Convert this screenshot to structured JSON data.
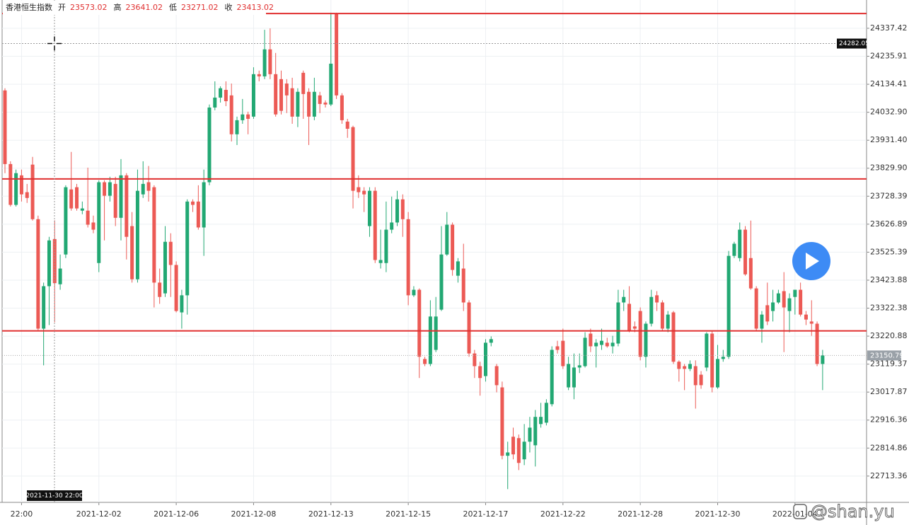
{
  "chart_data": {
    "type": "candlestick",
    "header": {
      "name": "香港恒生指数",
      "fields": [
        {
          "label": "开",
          "value": 23573.02
        },
        {
          "label": "高",
          "value": 23641.02
        },
        {
          "label": "低",
          "value": 23271.02
        },
        {
          "label": "收",
          "value": 23413.02
        }
      ]
    },
    "categories": [
      null,
      null,
      null,
      "22:00",
      null,
      null,
      null,
      null,
      null,
      null,
      null,
      null,
      null,
      null,
      null,
      null,
      null,
      "2021-12-02",
      null,
      null,
      null,
      null,
      null,
      null,
      null,
      null,
      null,
      null,
      null,
      null,
      null,
      "2021-12-06",
      null,
      null,
      null,
      null,
      null,
      null,
      null,
      null,
      null,
      null,
      null,
      null,
      null,
      "2021-12-08",
      null,
      null,
      null,
      null,
      null,
      null,
      null,
      null,
      null,
      null,
      null,
      null,
      null,
      "2021-12-13",
      null,
      null,
      null,
      null,
      null,
      null,
      null,
      null,
      null,
      null,
      null,
      null,
      null,
      "2021-12-15",
      null,
      null,
      null,
      null,
      null,
      null,
      null,
      null,
      null,
      null,
      null,
      null,
      null,
      "2021-12-17",
      null,
      null,
      null,
      null,
      null,
      null,
      null,
      null,
      null,
      null,
      null,
      null,
      null,
      "2021-12-22",
      null,
      null,
      null,
      null,
      null,
      null,
      null,
      null,
      null,
      null,
      null,
      null,
      null,
      "2021-12-28",
      null,
      null,
      null,
      null,
      null,
      null,
      null,
      null,
      null,
      null,
      null,
      null,
      null,
      "2021-12-30",
      null,
      null,
      null,
      null,
      null,
      null,
      null,
      null,
      null,
      null,
      null,
      null,
      null,
      "2022-01-04",
      null,
      null,
      null,
      null,
      null
    ],
    "open": [
      24112,
      23845,
      23697,
      23804,
      23743,
      23843,
      23645,
      23248,
      23402,
      23573.02,
      23409,
      23517,
      23753,
      23761,
      23676,
      23676,
      23633,
      23486,
      23779,
      23730,
      23773,
      23650,
      23804,
      23620,
      23427,
      23735,
      23779,
      23761,
      23415,
      23376,
      23563,
      23479,
      23307,
      23369,
      23709,
      23709,
      23615,
      23779,
      24050,
      24086,
      24114,
      24094,
      23953,
      24004,
      24025,
      24017,
      24171,
      24163,
      24261,
      24171,
      24153,
      24137,
      24120,
      24017,
      24176,
      24107,
      24017,
      24094,
      24068,
      24061,
      24389,
      24094,
      23999,
      23979,
      23761,
      23748,
      23620,
      23748,
      23486,
      23486,
      23607,
      23633,
      23717,
      23645,
      23369,
      23389,
      23138,
      23120,
      23171,
      23317,
      23517,
      23625,
      23440,
      23466,
      23343,
      23158,
      23112,
      23076,
      23197,
      23112,
      23035,
      22787,
      22856,
      22851,
      22774,
      22838,
      22825,
      22902,
      22907,
      22974,
      23184,
      23204,
      23035,
      23035,
      23107,
      23112,
      23230,
      23184,
      23189,
      23197,
      23184,
      23194,
      23343,
      23338,
      23256,
      23312,
      23146,
      23266,
      23369,
      23343,
      23248,
      23307,
      23128,
      23112,
      23102,
      23112,
      23081,
      23107,
      23230,
      23035,
      23138,
      23146,
      23512,
      23504,
      23607,
      23504,
      23394,
      23248,
      23333,
      23312,
      23343,
      23384,
      23312,
      23363,
      23389,
      23299,
      23274,
      23266,
      23120
    ],
    "high": [
      24120,
      23855,
      23825,
      23825,
      23773,
      23871,
      23658,
      23415,
      23581,
      23641.02,
      23517,
      23768,
      23889,
      23773,
      23709,
      23832,
      23658,
      23786,
      23786,
      23799,
      23799,
      23863,
      23812,
      23671,
      23825,
      23855,
      23838,
      23768,
      23466,
      23620,
      23594,
      23492,
      23389,
      23717,
      23717,
      23768,
      23825,
      24061,
      24145,
      24127,
      24145,
      24137,
      24017,
      24081,
      24035,
      24196,
      24184,
      24332,
      24337,
      24248,
      24184,
      24153,
      24158,
      24120,
      24184,
      24120,
      24158,
      24107,
      24076,
      24394,
      24394,
      24102,
      24009,
      23984,
      23804,
      23761,
      23761,
      23761,
      23607,
      23709,
      23727,
      23748,
      23735,
      23671,
      23402,
      23394,
      23146,
      23351,
      23363,
      23620,
      23671,
      23633,
      23504,
      23556,
      23351,
      23171,
      23128,
      23210,
      23220,
      23120,
      23056,
      22838,
      22889,
      22864,
      22902,
      22928,
      22953,
      22979,
      22992,
      23184,
      23204,
      23248,
      23146,
      23158,
      23158,
      23235,
      23248,
      23210,
      23248,
      23215,
      23222,
      23389,
      23389,
      23402,
      23274,
      23325,
      23274,
      23389,
      23384,
      23351,
      23312,
      23312,
      23133,
      23120,
      23133,
      23133,
      23094,
      23235,
      23240,
      23189,
      23171,
      23530,
      23563,
      23633,
      23620,
      23640,
      23402,
      23312,
      23415,
      23389,
      23389,
      23453,
      23376,
      23389,
      23415,
      23312,
      23351,
      23274,
      23171
    ],
    "low": [
      23812,
      23691,
      23691,
      23709,
      23704,
      23640,
      23243,
      23115,
      23261,
      23271.02,
      23389,
      23504,
      23676,
      23676,
      23663,
      23615,
      23594,
      23453,
      23568,
      23709,
      23620,
      23568,
      23499,
      23415,
      23415,
      23722,
      23709,
      23325,
      23338,
      23363,
      23363,
      23307,
      23248,
      23299,
      23671,
      23607,
      23512,
      23768,
      24040,
      24068,
      24055,
      23927,
      23914,
      23991,
      23953,
      24009,
      24145,
      24153,
      24153,
      24017,
      24025,
      24030,
      23991,
      23979,
      24009,
      23914,
      24004,
      24030,
      24050,
      24055,
      24081,
      23991,
      23940,
      23684,
      23722,
      23671,
      23581,
      23486,
      23466,
      23453,
      23594,
      23620,
      23581,
      23333,
      23363,
      23069,
      23112,
      23112,
      23163,
      23312,
      23512,
      23440,
      23415,
      23312,
      23146,
      23069,
      23005,
      23056,
      23184,
      23017,
      22774,
      22666,
      22774,
      22735,
      22753,
      22799,
      22748,
      22889,
      22897,
      22966,
      23158,
      23102,
      23025,
      22992,
      23087,
      23107,
      23163,
      23107,
      23171,
      23179,
      23158,
      23184,
      23312,
      23235,
      23235,
      23133,
      23107,
      23256,
      23312,
      23240,
      23235,
      23120,
      23056,
      23025,
      23094,
      22958,
      23030,
      23094,
      23017,
      23030,
      23128,
      23138,
      23504,
      23492,
      23440,
      23389,
      23240,
      23197,
      23261,
      23274,
      23338,
      23163,
      23235,
      23299,
      23292,
      23261,
      23222,
      23112,
      23025
    ],
    "close": [
      23845,
      23697,
      23812,
      23735,
      23722,
      23645,
      23248,
      23402,
      23568,
      23413.02,
      23466,
      23761,
      23684,
      23684,
      23684,
      23625,
      23607,
      23779,
      23730,
      23779,
      23650,
      23804,
      23581,
      23427,
      23748,
      23773,
      23748,
      23415,
      23363,
      23563,
      23479,
      23312,
      23369,
      23709,
      23697,
      23615,
      23779,
      24050,
      24086,
      24120,
      24073,
      23953,
      24004,
      24025,
      24009,
      24171,
      24163,
      24261,
      24171,
      24025,
      24038,
      24094,
      24017,
      24107,
      24099,
      24017,
      24107,
      24063,
      24061,
      24209,
      24094,
      24004,
      23973,
      23748,
      23743,
      23735,
      23748,
      23497,
      23497,
      23607,
      23633,
      23717,
      23645,
      23369,
      23389,
      23146,
      23120,
      23292,
      23292,
      23517,
      23625,
      23461,
      23492,
      23343,
      23158,
      23112,
      23069,
      23197,
      23210,
      23043,
      22787,
      22799,
      22792,
      22761,
      22838,
      22889,
      22928,
      22928,
      22979,
      23171,
      23171,
      23112,
      23120,
      23107,
      23115,
      23215,
      23184,
      23197,
      23204,
      23184,
      23197,
      23343,
      23363,
      23240,
      23248,
      23146,
      23266,
      23363,
      23343,
      23248,
      23299,
      23128,
      23102,
      23102,
      23120,
      23043,
      23043,
      23230,
      23035,
      23138,
      23146,
      23512,
      23556,
      23607,
      23445,
      23394,
      23248,
      23299,
      23274,
      23343,
      23376,
      23325,
      23358,
      23389,
      23299,
      23281,
      23266,
      23120,
      23151
    ],
    "up_color": "#22a873",
    "down_color": "#ec5a55",
    "ylim": [
      22618,
      24440
    ],
    "yticks": [
      24337.42,
      24235.91,
      24134.41,
      {
        "value": 24032.9,
        "label": "24032.90"
      },
      {
        "value": 23931.4,
        "label": "23931.40"
      },
      {
        "value": 23829.9,
        "label": "23829.90"
      },
      23728.39,
      23626.89,
      23525.39,
      23423.88,
      23322.38,
      23220.88,
      23119.37,
      23017.87,
      22916.36,
      22814.86,
      22713.36
    ],
    "grid": true,
    "hlines": [
      24391,
      23791,
      23240
    ],
    "hline_color": "#e03030",
    "last_price": 23150.79,
    "crosshair": {
      "x": "2021-11-30 22:00",
      "y": 24282.05
    },
    "watermark": "@shan.yu"
  }
}
